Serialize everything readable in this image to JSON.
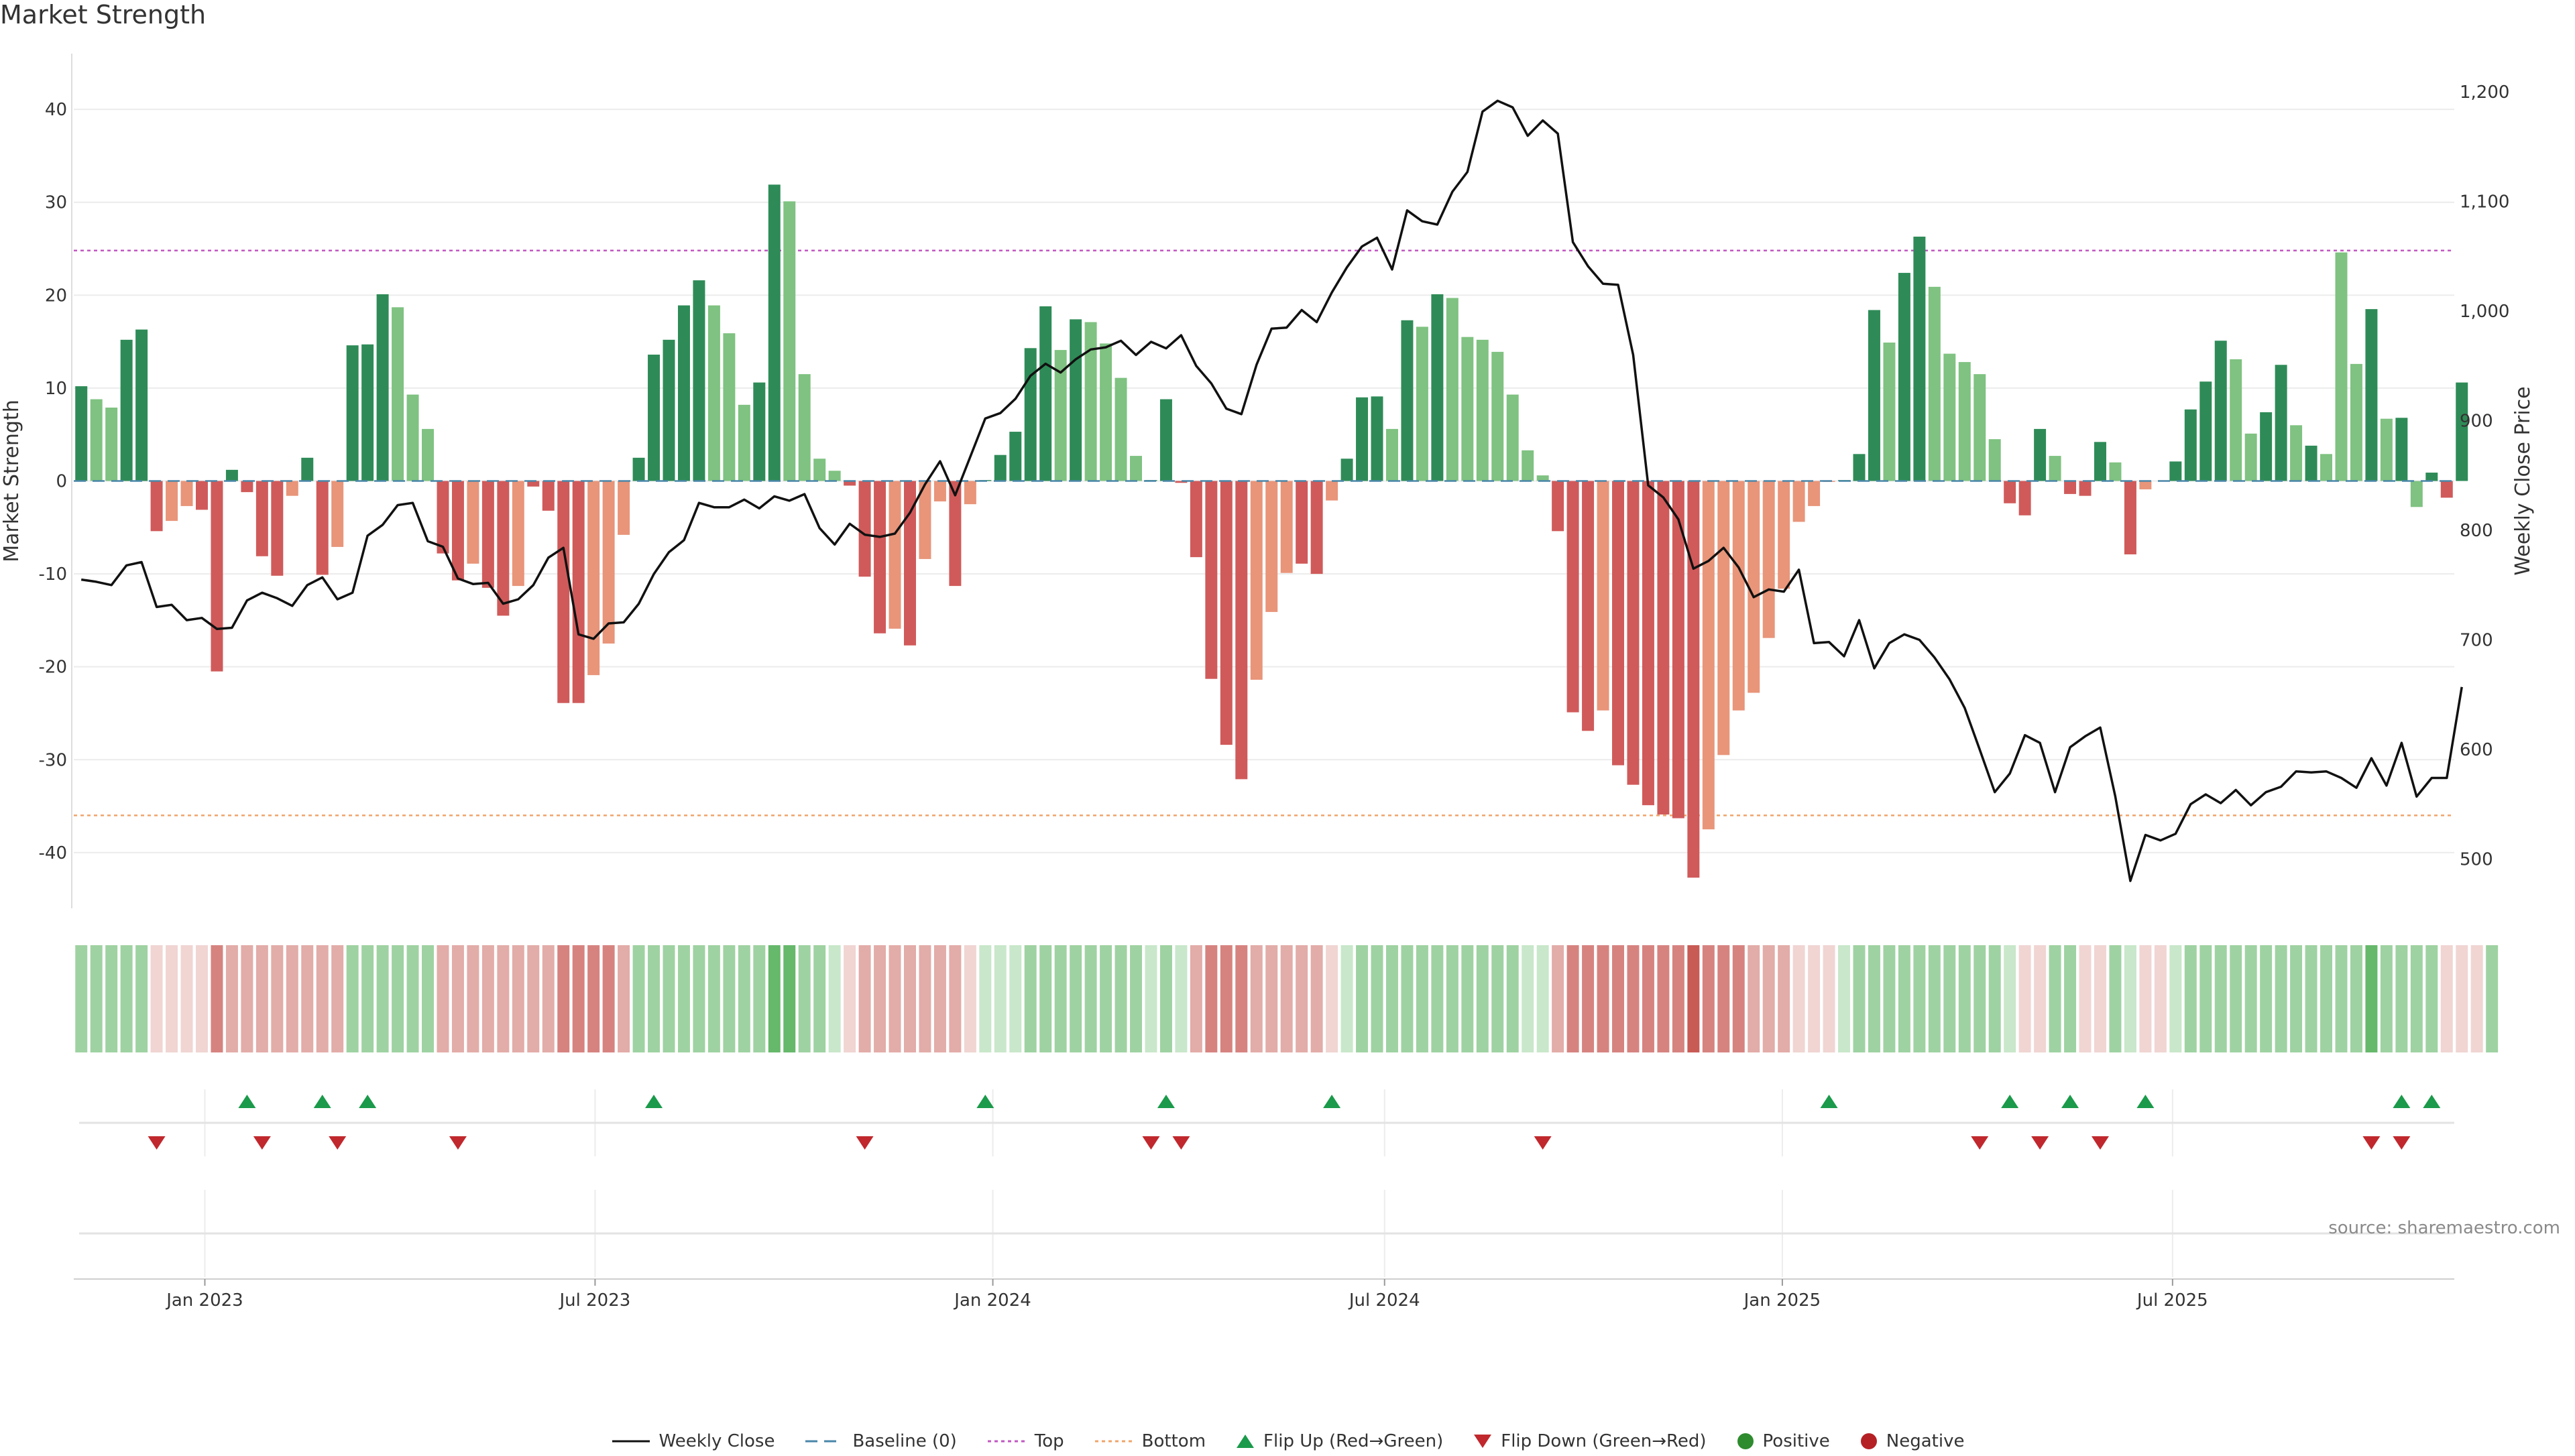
{
  "title": "Market Strength",
  "source": "source: sharemaestro.com",
  "colors": {
    "strong_pos": "#2e8b57",
    "weak_pos": "#7fc281",
    "strong_neg": "#d05a5a",
    "weak_neg": "#e8957a",
    "price_line": "#111111",
    "top_line": "#c257c2",
    "bottom_line": "#f0a46a",
    "baseline": "#4a86a8",
    "flip_up": "#1a9a4a",
    "flip_down": "#c0282d"
  },
  "legend": {
    "weekly_close": "Weekly Close",
    "baseline": "Baseline (0)",
    "top": "Top",
    "bottom": "Bottom",
    "flip_up": "Flip Up (Red→Green)",
    "flip_down": "Flip Down (Green→Red)",
    "positive": "Positive",
    "negative": "Negative"
  },
  "chart_data": {
    "type": "bar",
    "title": "Market Strength",
    "ylabel": "Market Strength",
    "y2label": "Weekly Close Price",
    "ylim": [
      -46,
      46
    ],
    "y2lim": [
      455,
      1235
    ],
    "yticks": [
      -40,
      -30,
      -20,
      -10,
      0,
      10,
      20,
      30,
      40
    ],
    "y2ticks": [
      500,
      600,
      700,
      800,
      900,
      1000,
      1100,
      1200
    ],
    "y2tick_labels": [
      "500",
      "600",
      "700",
      "800",
      "900",
      "1,000",
      "1,100",
      "1,200"
    ],
    "top_threshold": 24.8,
    "bottom_threshold": -36,
    "x_start": "2022-10-03",
    "weeks": 158,
    "xticks": [
      {
        "label": "Jan 2023",
        "week": 8.7
      },
      {
        "label": "Jul 2023",
        "week": 34.6
      },
      {
        "label": "Jan 2024",
        "week": 61
      },
      {
        "label": "Jul 2024",
        "week": 87
      },
      {
        "label": "Jan 2025",
        "week": 113.4
      },
      {
        "label": "Jul 2025",
        "week": 139.3
      }
    ],
    "strength": [
      10.2,
      8.8,
      7.9,
      15.2,
      16.3,
      -5.4,
      -4.3,
      -2.7,
      -3.1,
      -20.5,
      1.2,
      -1.2,
      -8.1,
      -10.2,
      -1.6,
      2.5,
      -10.1,
      -7.1,
      14.6,
      14.7,
      20.1,
      18.7,
      9.3,
      5.6,
      -7.8,
      -10.7,
      -8.9,
      -11.5,
      -14.5,
      -11.3,
      -0.6,
      -3.2,
      -23.9,
      -23.9,
      -20.9,
      -17.5,
      -5.8,
      2.5,
      13.6,
      15.2,
      18.9,
      21.6,
      18.9,
      15.9,
      8.2,
      10.6,
      31.9,
      30.1,
      11.5,
      2.4,
      1.1,
      -0.5,
      -10.3,
      -16.4,
      -15.9,
      -17.7,
      -8.4,
      -2.2,
      -11.3,
      -2.5,
      0.1,
      2.8,
      5.3,
      14.3,
      18.8,
      14.1,
      17.4,
      17.1,
      14.8,
      11.1,
      2.7,
      0.1,
      8.8,
      -0.2,
      -8.2,
      -21.3,
      -28.4,
      -32.1,
      -21.4,
      -14.1,
      -9.9,
      -8.9,
      -10.0,
      -2.1,
      2.4,
      9.0,
      9.1,
      5.6,
      17.3,
      16.6,
      20.1,
      19.7,
      15.5,
      15.2,
      13.9,
      9.3,
      3.3,
      0.6,
      -5.4,
      -24.9,
      -26.9,
      -24.7,
      -30.6,
      -32.7,
      -34.9,
      -35.9,
      -36.3,
      -42.7,
      -37.5,
      -29.5,
      -24.7,
      -22.8,
      -16.9,
      -11.6,
      -4.4,
      -2.7,
      -0.1,
      0.1,
      2.9,
      18.4,
      14.9,
      22.4,
      26.3,
      20.9,
      13.7,
      12.8,
      11.5,
      4.5,
      -2.4,
      -3.7,
      5.6,
      2.7,
      -1.4,
      -1.6,
      4.2,
      2.0,
      -7.9,
      -0.9,
      0,
      2.1,
      7.7,
      10.7,
      15.1,
      13.1,
      5.1,
      7.4,
      12.5,
      6.0,
      3.8,
      2.9,
      24.6,
      12.6,
      18.5,
      6.7,
      6.8,
      -2.8,
      0.9,
      -1.8,
      10.6
    ],
    "strength_class": [
      "s",
      "w",
      "w",
      "s",
      "s",
      "S",
      "W",
      "W",
      "S",
      "S",
      "s",
      "S",
      "S",
      "S",
      "W",
      "s",
      "S",
      "W",
      "s",
      "s",
      "s",
      "w",
      "w",
      "w",
      "S",
      "S",
      "W",
      "S",
      "S",
      "W",
      "S",
      "S",
      "S",
      "S",
      "W",
      "W",
      "W",
      "s",
      "s",
      "s",
      "s",
      "s",
      "w",
      "w",
      "w",
      "s",
      "s",
      "w",
      "w",
      "w",
      "w",
      "S",
      "S",
      "S",
      "W",
      "S",
      "W",
      "W",
      "S",
      "W",
      "s",
      "s",
      "s",
      "s",
      "s",
      "w",
      "s",
      "w",
      "w",
      "w",
      "w",
      "s",
      "s",
      "S",
      "S",
      "S",
      "S",
      "S",
      "W",
      "W",
      "W",
      "S",
      "S",
      "W",
      "s",
      "s",
      "s",
      "w",
      "s",
      "w",
      "s",
      "w",
      "w",
      "w",
      "w",
      "w",
      "w",
      "w",
      "S",
      "S",
      "S",
      "W",
      "S",
      "S",
      "S",
      "S",
      "S",
      "S",
      "W",
      "W",
      "W",
      "W",
      "W",
      "W",
      "W",
      "W",
      "W",
      "s",
      "s",
      "s",
      "w",
      "s",
      "s",
      "w",
      "w",
      "w",
      "w",
      "w",
      "S",
      "S",
      "s",
      "w",
      "S",
      "S",
      "s",
      "w",
      "S",
      "W",
      "s",
      "s",
      "s",
      "s",
      "s",
      "w",
      "w",
      "s",
      "s",
      "w",
      "s",
      "w",
      "w",
      "w",
      "s",
      "w",
      "s",
      "w",
      "s",
      "S",
      "s",
      "S",
      "s"
    ],
    "price": [
      755,
      753,
      750,
      768,
      771,
      730,
      732,
      718,
      720,
      710,
      711,
      736,
      743,
      738,
      731,
      750,
      757,
      737,
      743,
      795,
      805,
      823,
      825,
      790,
      785,
      756,
      751,
      752,
      733,
      737,
      750,
      775,
      784,
      705,
      701,
      715,
      716,
      733,
      760,
      780,
      791,
      825,
      821,
      821,
      828,
      820,
      831,
      827,
      833,
      802,
      787,
      806,
      796,
      794,
      797,
      816,
      842,
      863,
      832,
      867,
      902,
      907,
      920,
      941,
      952,
      944,
      956,
      965,
      967,
      973,
      960,
      972,
      966,
      978,
      950,
      934,
      911,
      906,
      951,
      984,
      985,
      1001,
      990,
      1017,
      1040,
      1059,
      1067,
      1038,
      1092,
      1082,
      1079,
      1109,
      1127,
      1182,
      1192,
      1186,
      1160,
      1174,
      1162,
      1063,
      1041,
      1025,
      1024,
      960,
      841,
      830,
      810,
      765,
      772,
      784,
      766,
      739,
      746,
      744,
      764,
      697,
      698,
      685,
      718,
      674,
      697,
      705,
      700,
      684,
      664,
      638,
      600,
      561,
      578,
      613,
      606,
      561,
      602,
      612,
      620,
      557,
      480,
      522,
      517,
      523,
      550,
      559,
      551,
      563,
      549,
      561,
      566,
      580,
      579,
      580,
      574,
      565,
      592,
      567,
      606,
      557,
      574,
      574,
      657
    ],
    "heat": [
      3,
      3,
      3,
      3,
      3,
      -1,
      -1,
      -1,
      -1,
      -3,
      -2,
      -2,
      -2,
      -2,
      -2,
      -2,
      -2,
      -2,
      3,
      3,
      3,
      3,
      3,
      3,
      -2,
      -2,
      -2,
      -2,
      -2,
      -2,
      -2,
      -2,
      -3,
      -3,
      -3,
      -3,
      -2,
      3,
      3,
      3,
      3,
      3,
      3,
      3,
      3,
      3,
      4,
      4,
      3,
      3,
      2,
      -1,
      -2,
      -2,
      -2,
      -2,
      -2,
      -2,
      -2,
      -1,
      2,
      2,
      2,
      3,
      3,
      3,
      3,
      3,
      3,
      3,
      3,
      2,
      3,
      2,
      -2,
      -3,
      -3,
      -3,
      -2,
      -2,
      -2,
      -2,
      -2,
      -1,
      2,
      3,
      3,
      3,
      3,
      3,
      3,
      3,
      3,
      3,
      3,
      3,
      2,
      2,
      -2,
      -3,
      -3,
      -3,
      -3,
      -3,
      -3,
      -3,
      -3,
      -4,
      -3,
      -3,
      -3,
      -2,
      -2,
      -2,
      -1,
      -1,
      -1,
      2,
      3,
      3,
      3,
      3,
      3,
      3,
      3,
      3,
      3,
      3,
      2,
      -1,
      -1,
      3,
      3,
      -1,
      -1,
      3,
      2,
      -1,
      -1,
      2,
      3,
      3,
      3,
      3,
      3,
      3,
      3,
      3,
      3,
      3,
      3,
      3,
      4,
      3,
      3,
      3,
      3,
      -1,
      -1,
      -1,
      3
    ],
    "flip_up_weeks": [
      11,
      16,
      19,
      38,
      60,
      72,
      83,
      116,
      128,
      132,
      137,
      154,
      156
    ],
    "flip_down_weeks": [
      5,
      12,
      17,
      25,
      52,
      71,
      73,
      97,
      126,
      130,
      134,
      152,
      154
    ]
  }
}
